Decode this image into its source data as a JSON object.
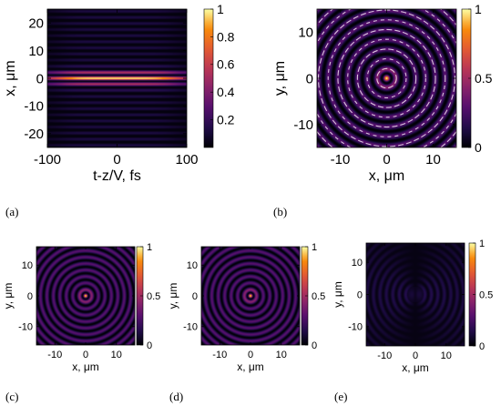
{
  "colors": {
    "colormap": "inferno",
    "axis": "#000000",
    "ring_overlay": "#ffffff"
  },
  "chart_data": [
    {
      "id": "a",
      "panel_label": "(a)",
      "type": "heatmap",
      "pattern": "stripes",
      "xlabel": "t-z/V, fs",
      "ylabel": "x, μm",
      "xlim": [
        -100,
        100
      ],
      "ylim": [
        -25,
        25
      ],
      "xticks": [
        -100,
        0,
        100
      ],
      "xtick_labels": [
        "-100",
        "0",
        "100"
      ],
      "yticks": [
        20,
        10,
        0,
        -10,
        -20
      ],
      "ytick_labels": [
        "20",
        "10",
        "0",
        "-10",
        "-20"
      ],
      "colorbar": {
        "min": 0,
        "max": 1,
        "ticks": [
          1,
          0.8,
          0.6,
          0.4,
          0.2
        ],
        "tick_labels": [
          "1",
          "0.8",
          "0.6",
          "0.4",
          "0.2"
        ]
      }
    },
    {
      "id": "b",
      "panel_label": "(b)",
      "type": "heatmap",
      "pattern": "rings-with-overlay",
      "xlabel": "x, μm",
      "ylabel": "y, μm",
      "xlim": [
        -15,
        15
      ],
      "ylim": [
        -15,
        15
      ],
      "xticks": [
        -10,
        0,
        10
      ],
      "xtick_labels": [
        "-10",
        "0",
        "10"
      ],
      "yticks": [
        10,
        0,
        -10
      ],
      "ytick_labels": [
        "10",
        "0",
        "-10"
      ],
      "colorbar": {
        "min": 0,
        "max": 1,
        "ticks": [
          1,
          0.5,
          0
        ],
        "tick_labels": [
          "1",
          "0.5",
          "0"
        ]
      }
    },
    {
      "id": "c",
      "panel_label": "(c)",
      "type": "heatmap",
      "pattern": "rings",
      "xlabel": "x, μm",
      "ylabel": "y, μm",
      "xlim": [
        -16,
        16
      ],
      "ylim": [
        -16,
        16
      ],
      "xticks": [
        -10,
        0,
        10
      ],
      "xtick_labels": [
        "-10",
        "0",
        "10"
      ],
      "yticks": [
        10,
        0,
        -10
      ],
      "ytick_labels": [
        "10",
        "0",
        "-10"
      ],
      "colorbar": {
        "min": 0,
        "max": 1,
        "ticks": [
          1,
          0.5,
          0
        ],
        "tick_labels": [
          "1",
          "0.5",
          "0"
        ]
      }
    },
    {
      "id": "d",
      "panel_label": "(d)",
      "type": "heatmap",
      "pattern": "rings",
      "xlabel": "x, μm",
      "ylabel": "y, μm",
      "xlim": [
        -16,
        16
      ],
      "ylim": [
        -16,
        16
      ],
      "xticks": [
        -10,
        0,
        10
      ],
      "xtick_labels": [
        "-10",
        "0",
        "10"
      ],
      "yticks": [
        10,
        0,
        -10
      ],
      "ytick_labels": [
        "10",
        "0",
        "-10"
      ],
      "colorbar": {
        "min": 0,
        "max": 1,
        "ticks": [
          1,
          0.5,
          0
        ],
        "tick_labels": [
          "1",
          "0.5",
          "0"
        ]
      }
    },
    {
      "id": "e",
      "panel_label": "(e)",
      "type": "heatmap",
      "pattern": "rings-dim",
      "xlabel": "x, μm",
      "ylabel": "y, μm",
      "xlim": [
        -16,
        16
      ],
      "ylim": [
        -16,
        16
      ],
      "xticks": [
        -10,
        0,
        10
      ],
      "xtick_labels": [
        "-10",
        "0",
        "10"
      ],
      "yticks": [
        10,
        0,
        -10
      ],
      "ytick_labels": [
        "10",
        "0",
        "-10"
      ],
      "colorbar": {
        "min": 0,
        "max": 1,
        "ticks": [
          1,
          0.5,
          0
        ],
        "tick_labels": [
          "1",
          "0.5",
          "0"
        ]
      }
    }
  ]
}
